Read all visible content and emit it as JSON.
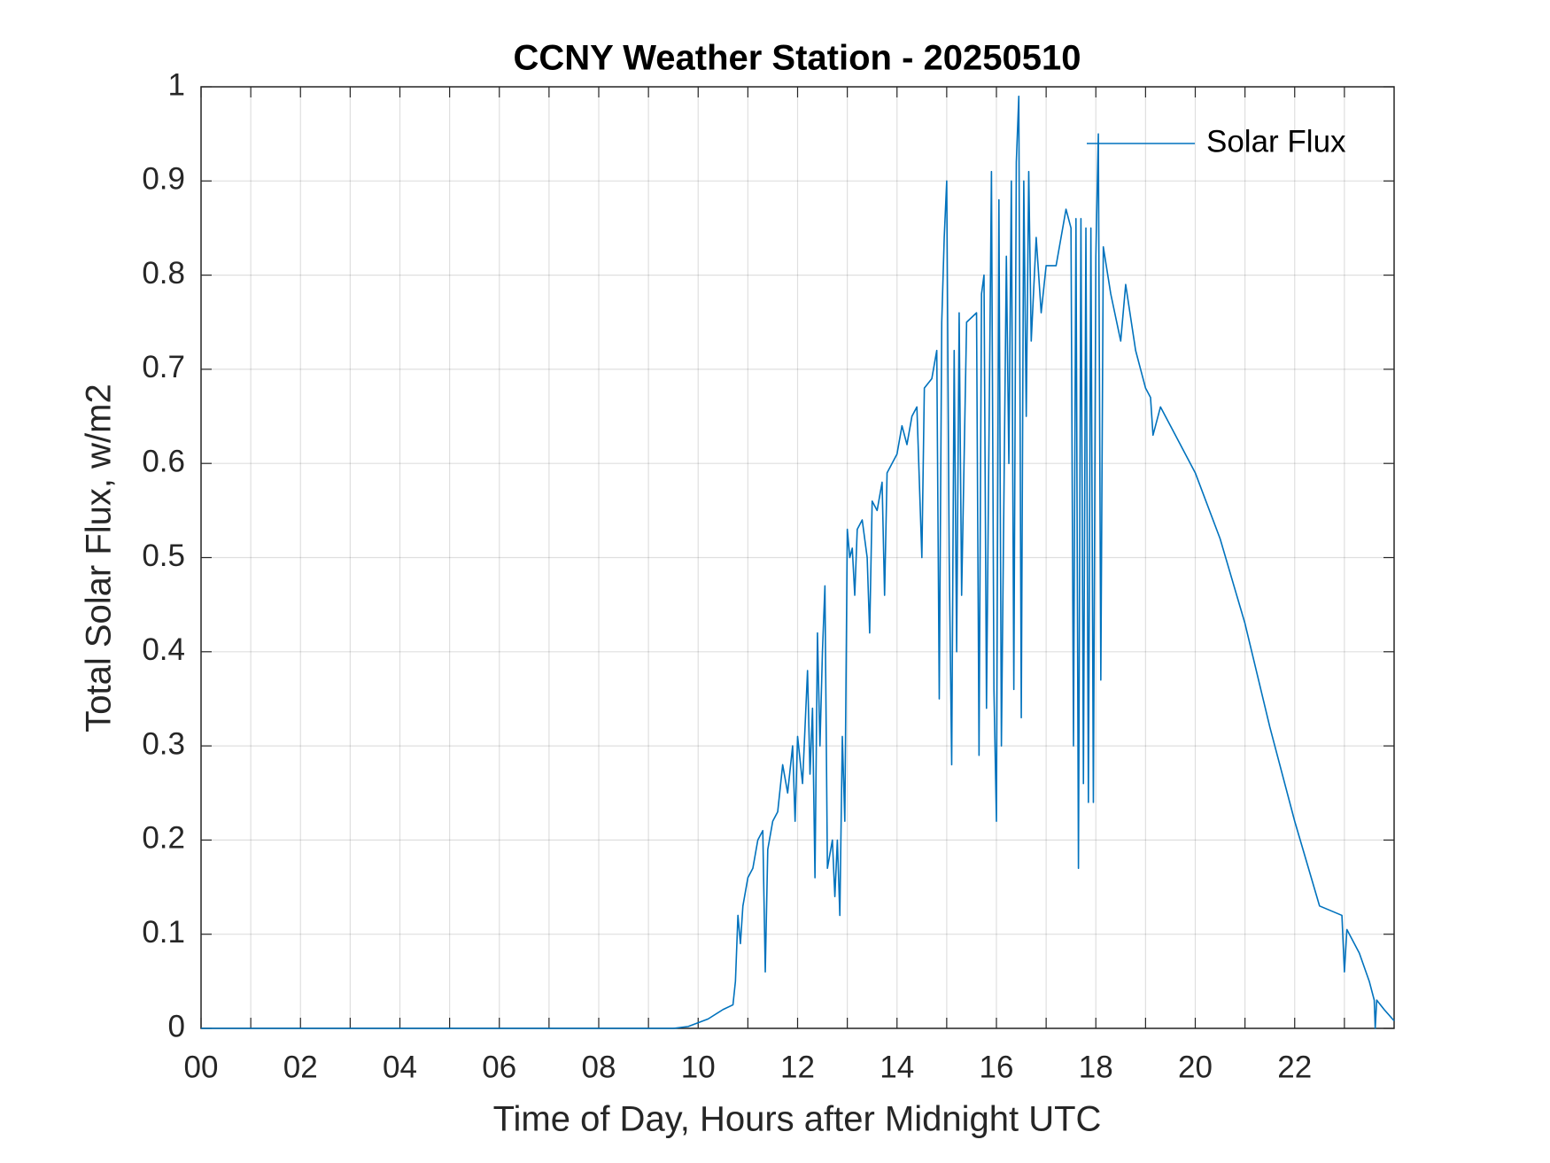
{
  "chart_data": {
    "type": "line",
    "title": "CCNY Weather Station - 20250510",
    "xlabel": "Time of Day, Hours after Midnight UTC",
    "ylabel": "Total Solar Flux, w/m2",
    "xlim": [
      0,
      24
    ],
    "xticks": [
      {
        "value": 0,
        "label": "00"
      },
      {
        "value": 2,
        "label": "02"
      },
      {
        "value": 4,
        "label": "04"
      },
      {
        "value": 6,
        "label": "06"
      },
      {
        "value": 8,
        "label": "08"
      },
      10,
      12,
      14,
      16,
      18,
      20,
      22
    ],
    "xminorticks": [
      1,
      3,
      5,
      7,
      9,
      11,
      13,
      15,
      17,
      19,
      21,
      23
    ],
    "ylim": [
      0,
      1
    ],
    "yticks": [
      0,
      0.1,
      0.2,
      0.3,
      0.4,
      0.5,
      0.6,
      0.7,
      0.8,
      0.9,
      1
    ],
    "grid": true,
    "legend": "northeast",
    "x": [
      0,
      9.5,
      9.8,
      10.2,
      10.5,
      10.7,
      10.75,
      10.8,
      10.85,
      10.9,
      11.0,
      11.1,
      11.2,
      11.3,
      11.35,
      11.4,
      11.5,
      11.6,
      11.7,
      11.8,
      11.9,
      11.95,
      12.0,
      12.1,
      12.2,
      12.25,
      12.3,
      12.35,
      12.4,
      12.45,
      12.5,
      12.55,
      12.6,
      12.7,
      12.75,
      12.8,
      12.85,
      12.9,
      12.95,
      13.0,
      13.05,
      13.1,
      13.15,
      13.2,
      13.3,
      13.4,
      13.45,
      13.5,
      13.6,
      13.7,
      13.75,
      13.8,
      13.9,
      14.0,
      14.1,
      14.2,
      14.3,
      14.4,
      14.5,
      14.55,
      14.7,
      14.8,
      14.85,
      14.9,
      14.95,
      15.0,
      15.05,
      15.1,
      15.15,
      15.2,
      15.25,
      15.3,
      15.4,
      15.6,
      15.65,
      15.7,
      15.75,
      15.8,
      15.9,
      15.95,
      16.0,
      16.05,
      16.1,
      16.2,
      16.25,
      16.3,
      16.35,
      16.4,
      16.45,
      16.5,
      16.55,
      16.6,
      16.65,
      16.7,
      16.8,
      16.9,
      17.0,
      17.2,
      17.4,
      17.5,
      17.55,
      17.6,
      17.65,
      17.7,
      17.75,
      17.8,
      17.85,
      17.9,
      17.95,
      18.0,
      18.05,
      18.1,
      18.15,
      18.3,
      18.5,
      18.6,
      18.8,
      18.9,
      19.0,
      19.1,
      19.15,
      19.3,
      19.5,
      20.0,
      20.5,
      21.0,
      21.5,
      22.0,
      22.5,
      22.95,
      23.0,
      23.05,
      23.3,
      23.5,
      23.6,
      23.62,
      23.65,
      23.8,
      24
    ],
    "series": [
      {
        "name": "Solar Flux",
        "color": "#0072bd",
        "values": [
          0,
          0,
          0.002,
          0.01,
          0.02,
          0.025,
          0.05,
          0.12,
          0.09,
          0.13,
          0.16,
          0.17,
          0.2,
          0.21,
          0.06,
          0.19,
          0.22,
          0.23,
          0.28,
          0.25,
          0.3,
          0.22,
          0.31,
          0.26,
          0.38,
          0.27,
          0.34,
          0.16,
          0.42,
          0.3,
          0.4,
          0.47,
          0.17,
          0.2,
          0.14,
          0.2,
          0.12,
          0.31,
          0.22,
          0.53,
          0.5,
          0.51,
          0.46,
          0.53,
          0.54,
          0.5,
          0.42,
          0.56,
          0.55,
          0.58,
          0.46,
          0.59,
          0.6,
          0.61,
          0.64,
          0.62,
          0.65,
          0.66,
          0.5,
          0.68,
          0.69,
          0.72,
          0.35,
          0.75,
          0.84,
          0.9,
          0.5,
          0.28,
          0.72,
          0.4,
          0.76,
          0.46,
          0.75,
          0.76,
          0.29,
          0.78,
          0.8,
          0.34,
          0.91,
          0.36,
          0.22,
          0.88,
          0.3,
          0.82,
          0.6,
          0.9,
          0.36,
          0.92,
          0.99,
          0.33,
          0.9,
          0.65,
          0.91,
          0.73,
          0.84,
          0.76,
          0.81,
          0.81,
          0.87,
          0.85,
          0.3,
          0.86,
          0.17,
          0.86,
          0.26,
          0.85,
          0.24,
          0.85,
          0.24,
          0.82,
          0.95,
          0.37,
          0.83,
          0.78,
          0.73,
          0.79,
          0.72,
          0.7,
          0.68,
          0.67,
          0.63,
          0.66,
          0.64,
          0.59,
          0.52,
          0.43,
          0.32,
          0.22,
          0.13,
          0.12,
          0.06,
          0.105,
          0.08,
          0.05,
          0.03,
          0,
          0.03,
          0.02,
          0.008
        ]
      }
    ]
  }
}
